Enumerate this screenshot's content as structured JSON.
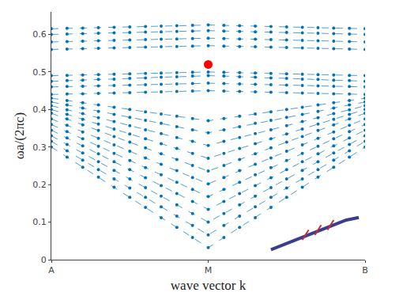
{
  "chart_data": {
    "type": "line",
    "xlabel": "wave vector k",
    "ylabel": "ωa/(2πc)",
    "color": "#0072bd",
    "marker": "circle",
    "line_style": "dashed",
    "grid": false,
    "x": [
      0,
      1,
      2,
      3,
      4,
      5,
      6,
      7,
      8,
      9,
      10,
      11,
      12,
      13,
      14,
      15,
      16,
      17,
      18,
      19,
      20
    ],
    "xlim": [
      0,
      20
    ],
    "xticks": [
      {
        "value": 0,
        "label": "A"
      },
      {
        "value": 10,
        "label": "M"
      },
      {
        "value": 20,
        "label": "B"
      }
    ],
    "ylim": [
      0,
      0.66
    ],
    "yticks": [
      0,
      0.1,
      0.2,
      0.3,
      0.4,
      0.5,
      0.6
    ],
    "series": [
      {
        "values": [
          0.3,
          0.273,
          0.246,
          0.22,
          0.193,
          0.166,
          0.139,
          0.112,
          0.086,
          0.059,
          0.032,
          0.059,
          0.086,
          0.112,
          0.139,
          0.166,
          0.193,
          0.22,
          0.246,
          0.273,
          0.3
        ]
      },
      {
        "values": [
          0.315,
          0.29,
          0.265,
          0.24,
          0.215,
          0.191,
          0.166,
          0.141,
          0.116,
          0.091,
          0.066,
          0.091,
          0.116,
          0.141,
          0.166,
          0.191,
          0.215,
          0.24,
          0.265,
          0.29,
          0.315
        ]
      },
      {
        "values": [
          0.33,
          0.307,
          0.284,
          0.261,
          0.238,
          0.215,
          0.192,
          0.169,
          0.146,
          0.123,
          0.1,
          0.123,
          0.146,
          0.169,
          0.192,
          0.215,
          0.238,
          0.261,
          0.284,
          0.307,
          0.33
        ]
      },
      {
        "values": [
          0.345,
          0.324,
          0.303,
          0.282,
          0.261,
          0.24,
          0.218,
          0.197,
          0.176,
          0.155,
          0.134,
          0.155,
          0.176,
          0.197,
          0.218,
          0.24,
          0.261,
          0.282,
          0.303,
          0.324,
          0.345
        ]
      },
      {
        "values": [
          0.36,
          0.341,
          0.322,
          0.302,
          0.283,
          0.264,
          0.245,
          0.226,
          0.206,
          0.187,
          0.168,
          0.187,
          0.206,
          0.226,
          0.245,
          0.264,
          0.283,
          0.302,
          0.322,
          0.341,
          0.36
        ]
      },
      {
        "values": [
          0.375,
          0.358,
          0.34,
          0.323,
          0.306,
          0.289,
          0.271,
          0.254,
          0.237,
          0.219,
          0.202,
          0.219,
          0.237,
          0.254,
          0.271,
          0.289,
          0.306,
          0.323,
          0.34,
          0.358,
          0.375
        ]
      },
      {
        "values": [
          0.39,
          0.375,
          0.359,
          0.344,
          0.328,
          0.313,
          0.298,
          0.282,
          0.267,
          0.251,
          0.236,
          0.251,
          0.267,
          0.282,
          0.298,
          0.313,
          0.328,
          0.344,
          0.359,
          0.375,
          0.39
        ]
      },
      {
        "values": [
          0.4,
          0.387,
          0.374,
          0.361,
          0.348,
          0.335,
          0.322,
          0.309,
          0.296,
          0.283,
          0.27,
          0.283,
          0.296,
          0.309,
          0.322,
          0.335,
          0.348,
          0.361,
          0.374,
          0.387,
          0.4
        ]
      },
      {
        "values": [
          0.41,
          0.399,
          0.389,
          0.378,
          0.368,
          0.357,
          0.346,
          0.336,
          0.325,
          0.315,
          0.304,
          0.315,
          0.325,
          0.336,
          0.346,
          0.357,
          0.368,
          0.378,
          0.389,
          0.399,
          0.41
        ]
      },
      {
        "values": [
          0.42,
          0.412,
          0.404,
          0.395,
          0.387,
          0.379,
          0.371,
          0.363,
          0.354,
          0.346,
          0.338,
          0.346,
          0.354,
          0.363,
          0.371,
          0.379,
          0.387,
          0.395,
          0.404,
          0.412,
          0.42
        ]
      },
      {
        "values": [
          0.43,
          0.424,
          0.418,
          0.412,
          0.406,
          0.4,
          0.394,
          0.388,
          0.382,
          0.376,
          0.37,
          0.376,
          0.382,
          0.388,
          0.394,
          0.4,
          0.406,
          0.412,
          0.418,
          0.424,
          0.43
        ]
      },
      {
        "values": [
          0.44,
          0.441,
          0.442,
          0.443,
          0.444,
          0.445,
          0.446,
          0.447,
          0.448,
          0.449,
          0.45,
          0.449,
          0.448,
          0.447,
          0.446,
          0.445,
          0.444,
          0.443,
          0.442,
          0.441,
          0.44
        ]
      },
      {
        "values": [
          0.46,
          0.461,
          0.462,
          0.463,
          0.464,
          0.465,
          0.466,
          0.467,
          0.468,
          0.469,
          0.47,
          0.469,
          0.468,
          0.467,
          0.466,
          0.465,
          0.464,
          0.463,
          0.462,
          0.461,
          0.46
        ]
      },
      {
        "values": [
          0.475,
          0.477,
          0.478,
          0.48,
          0.481,
          0.483,
          0.484,
          0.486,
          0.487,
          0.489,
          0.49,
          0.489,
          0.487,
          0.486,
          0.484,
          0.483,
          0.481,
          0.48,
          0.478,
          0.477,
          0.475
        ]
      },
      {
        "values": [
          0.49,
          0.491,
          0.492,
          0.493,
          0.494,
          0.495,
          0.496,
          0.497,
          0.498,
          0.499,
          0.5,
          0.499,
          0.498,
          0.497,
          0.496,
          0.495,
          0.494,
          0.493,
          0.492,
          0.491,
          0.49
        ]
      },
      {
        "values": [
          0.56,
          0.561,
          0.562,
          0.563,
          0.564,
          0.565,
          0.566,
          0.567,
          0.568,
          0.569,
          0.57,
          0.569,
          0.568,
          0.567,
          0.566,
          0.565,
          0.564,
          0.563,
          0.562,
          0.561,
          0.56
        ]
      },
      {
        "values": [
          0.58,
          0.581,
          0.582,
          0.583,
          0.584,
          0.585,
          0.586,
          0.587,
          0.588,
          0.589,
          0.59,
          0.589,
          0.588,
          0.587,
          0.586,
          0.585,
          0.584,
          0.583,
          0.582,
          0.581,
          0.58
        ]
      },
      {
        "values": [
          0.6,
          0.601,
          0.602,
          0.603,
          0.604,
          0.605,
          0.606,
          0.607,
          0.608,
          0.609,
          0.61,
          0.609,
          0.608,
          0.607,
          0.606,
          0.605,
          0.604,
          0.603,
          0.602,
          0.601,
          0.6
        ]
      },
      {
        "values": [
          0.615,
          0.616,
          0.617,
          0.618,
          0.619,
          0.62,
          0.621,
          0.622,
          0.623,
          0.624,
          0.625,
          0.624,
          0.623,
          0.622,
          0.621,
          0.62,
          0.619,
          0.618,
          0.617,
          0.616,
          0.615
        ]
      },
      {
        "x": [
          10
        ],
        "values": [
          0.52
        ],
        "color": "#ff0000",
        "marker": "circle"
      }
    ]
  }
}
